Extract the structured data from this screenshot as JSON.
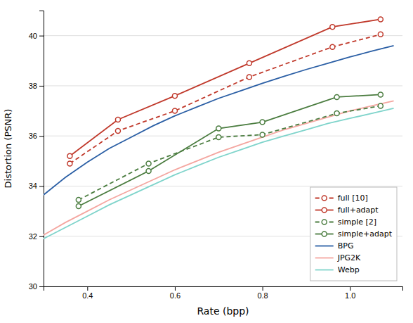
{
  "chart_data": {
    "type": "line",
    "xlabel": "Rate (bpp)",
    "ylabel": "Distortion (PSNR)",
    "xlim": [
      0.3,
      1.12
    ],
    "ylim": [
      30,
      41.0
    ],
    "xticks": [
      0.4,
      0.6,
      0.8,
      {
        "value": 1.0,
        "label": "1.0"
      }
    ],
    "yticks": [
      30,
      32,
      34,
      36,
      38,
      40
    ],
    "grid": true,
    "legend": "lower right",
    "series": [
      {
        "name": "full [10]",
        "color": "#c0392b",
        "line_style": "dashed",
        "marker": "circle",
        "x": [
          0.36,
          0.47,
          0.6,
          0.77,
          0.96,
          1.07
        ],
        "values": [
          34.9,
          36.2,
          37.0,
          38.35,
          39.55,
          40.05
        ]
      },
      {
        "name": "full+adapt",
        "color": "#c0392b",
        "line_style": "solid",
        "marker": "circle",
        "x": [
          0.36,
          0.47,
          0.6,
          0.77,
          0.96,
          1.07
        ],
        "values": [
          35.2,
          36.65,
          37.6,
          38.9,
          40.35,
          40.65
        ]
      },
      {
        "name": "simple [2]",
        "color": "#4a7c3f",
        "line_style": "dashed",
        "marker": "circle",
        "x": [
          0.38,
          0.54,
          0.7,
          0.8,
          0.97,
          1.07
        ],
        "values": [
          33.45,
          34.9,
          35.95,
          36.05,
          36.9,
          37.2
        ]
      },
      {
        "name": "simple+adapt",
        "color": "#4a7c3f",
        "line_style": "solid",
        "marker": "circle",
        "x": [
          0.38,
          0.54,
          0.7,
          0.8,
          0.97,
          1.07
        ],
        "values": [
          33.2,
          34.6,
          36.3,
          36.55,
          37.55,
          37.65
        ]
      },
      {
        "name": "BPG",
        "color": "#2b5fa5",
        "line_style": "solid",
        "x": [
          0.3,
          0.35,
          0.4,
          0.45,
          0.5,
          0.55,
          0.6,
          0.65,
          0.7,
          0.75,
          0.8,
          0.85,
          0.9,
          0.95,
          1.0,
          1.05,
          1.1
        ],
        "values": [
          33.65,
          34.35,
          34.95,
          35.5,
          35.95,
          36.4,
          36.8,
          37.15,
          37.5,
          37.8,
          38.1,
          38.38,
          38.65,
          38.9,
          39.15,
          39.38,
          39.6
        ]
      },
      {
        "name": "JPG2K",
        "color": "#f4a6a0",
        "line_style": "solid",
        "x": [
          0.3,
          0.35,
          0.4,
          0.45,
          0.5,
          0.55,
          0.6,
          0.65,
          0.7,
          0.75,
          0.8,
          0.85,
          0.9,
          0.95,
          1.0,
          1.05,
          1.1
        ],
        "values": [
          32.05,
          32.55,
          33.0,
          33.45,
          33.85,
          34.25,
          34.65,
          35.0,
          35.35,
          35.65,
          35.95,
          36.25,
          36.5,
          36.75,
          37.0,
          37.2,
          37.4
        ]
      },
      {
        "name": "Webp",
        "color": "#7fd4cb",
        "line_style": "solid",
        "x": [
          0.3,
          0.35,
          0.4,
          0.45,
          0.5,
          0.55,
          0.6,
          0.65,
          0.7,
          0.75,
          0.8,
          0.85,
          0.9,
          0.95,
          1.0,
          1.05,
          1.1
        ],
        "values": [
          31.9,
          32.35,
          32.8,
          33.25,
          33.65,
          34.05,
          34.45,
          34.8,
          35.15,
          35.45,
          35.75,
          36.0,
          36.25,
          36.5,
          36.7,
          36.9,
          37.1
        ]
      }
    ]
  }
}
